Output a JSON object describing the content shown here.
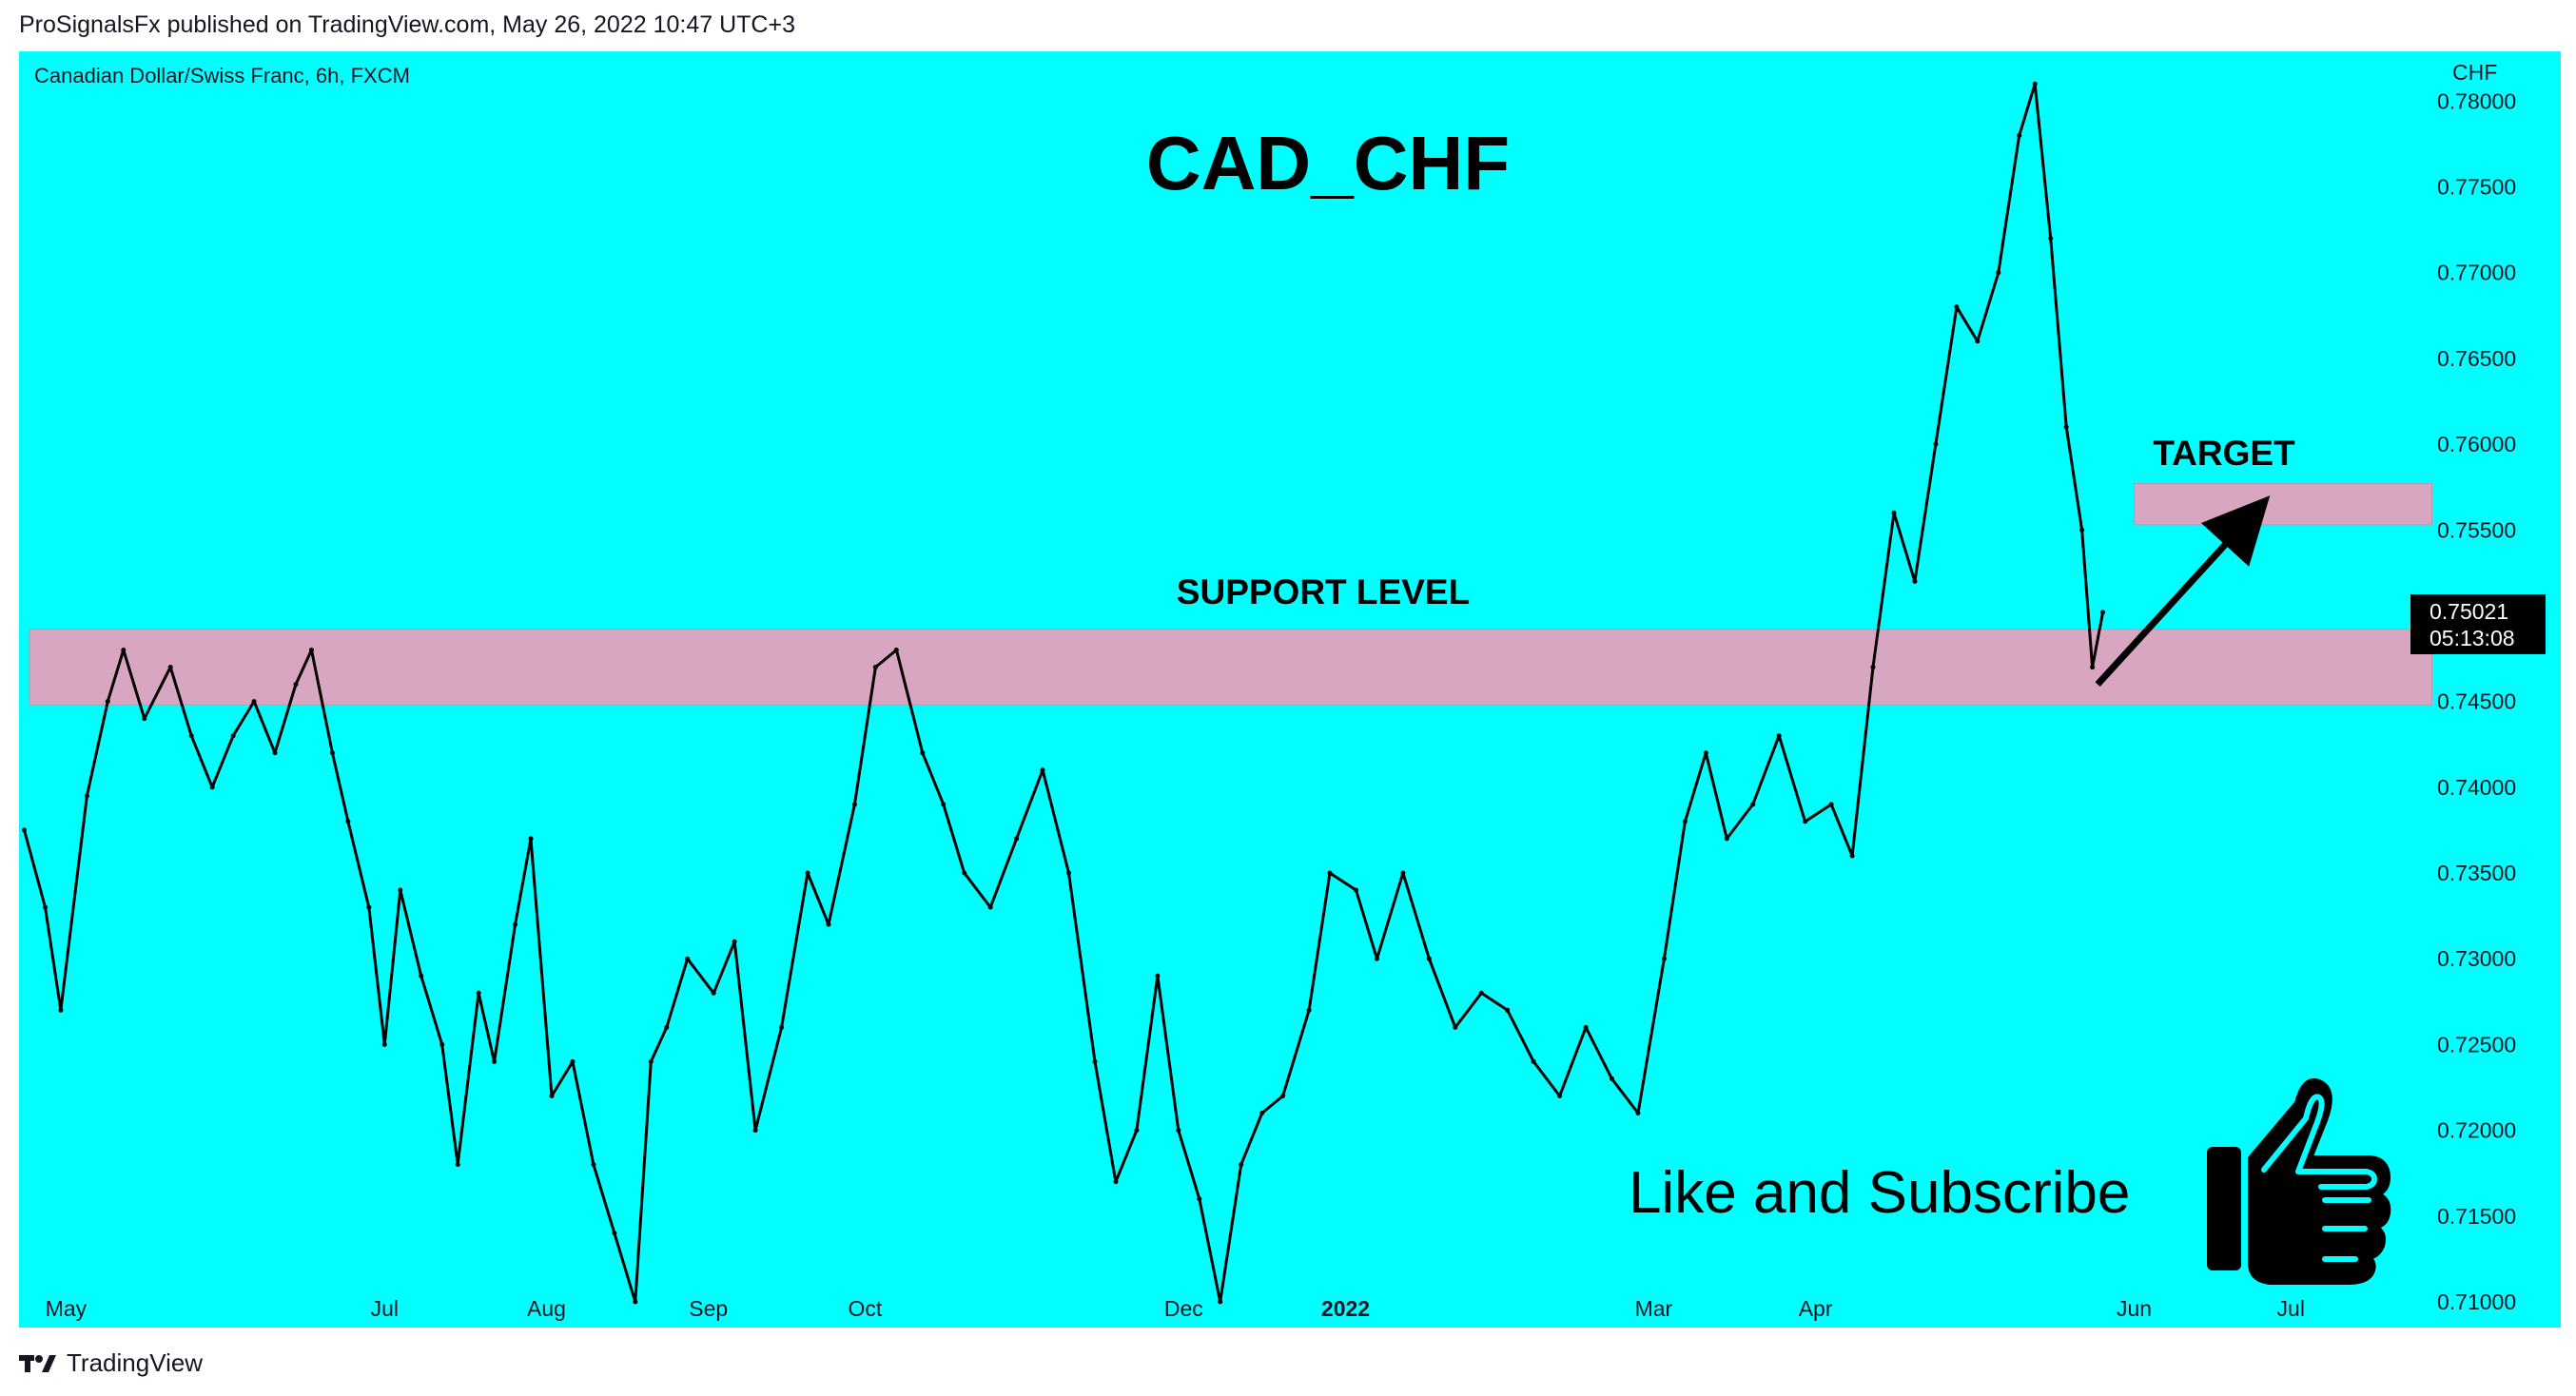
{
  "header": {
    "published": "ProSignalsFx published on TradingView.com, May 26, 2022 10:47 UTC+3"
  },
  "footer": {
    "brand": "TradingView"
  },
  "chart": {
    "symbol_label": "Canadian Dollar/Swiss Franc, 6h, FXCM",
    "title": "CAD_CHF",
    "currency": "CHF",
    "support_label": "SUPPORT LEVEL",
    "target_label": "TARGET",
    "promo_text": "Like and Subscribe",
    "last_price": "0.75021",
    "countdown": "05:13:08",
    "promo_icon": "thumbs-up-icon",
    "colors": {
      "background": "#00FFFF",
      "candles": "#000000",
      "zone_fill": "#D8A6C1",
      "price_tag": "#000000"
    }
  },
  "chart_data": {
    "type": "line",
    "title": "CAD_CHF",
    "xlabel": "",
    "ylabel": "CHF",
    "timeframe": "6h",
    "x_range": [
      "2021-04-22",
      "2022-07-25"
    ],
    "ylim": [
      0.7085,
      0.7829
    ],
    "y_ticks": [
      "0.78000",
      "0.77500",
      "0.77000",
      "0.76500",
      "0.76000",
      "0.75500",
      "0.75000",
      "0.74500",
      "0.74000",
      "0.73500",
      "0.73000",
      "0.72500",
      "0.72000",
      "0.71500",
      "0.71000"
    ],
    "x_ticks": [
      {
        "label": "May",
        "date": "2021-05-01"
      },
      {
        "label": "Jul",
        "date": "2021-07-01"
      },
      {
        "label": "Aug",
        "date": "2021-08-01"
      },
      {
        "label": "Sep",
        "date": "2021-09-01"
      },
      {
        "label": "Oct",
        "date": "2021-10-01"
      },
      {
        "label": "Dec",
        "date": "2021-12-01"
      },
      {
        "label": "2022",
        "date": "2022-01-01",
        "bold": true
      },
      {
        "label": "Mar",
        "date": "2022-03-01"
      },
      {
        "label": "Apr",
        "date": "2022-04-01"
      },
      {
        "label": "Jun",
        "date": "2022-06-01"
      },
      {
        "label": "Jul",
        "date": "2022-07-01"
      }
    ],
    "series": [
      {
        "x": [
          "2021-04-23",
          "2021-04-27",
          "2021-04-30",
          "2021-05-05",
          "2021-05-09",
          "2021-05-12",
          "2021-05-16",
          "2021-05-21",
          "2021-05-25",
          "2021-05-29",
          "2021-06-02",
          "2021-06-06",
          "2021-06-10",
          "2021-06-14",
          "2021-06-17",
          "2021-06-21",
          "2021-06-24",
          "2021-06-28",
          "2021-07-01",
          "2021-07-04",
          "2021-07-08",
          "2021-07-12",
          "2021-07-15",
          "2021-07-19",
          "2021-07-22",
          "2021-07-26",
          "2021-07-29",
          "2021-08-02",
          "2021-08-06",
          "2021-08-10",
          "2021-08-14",
          "2021-08-18",
          "2021-08-21",
          "2021-08-24",
          "2021-08-28",
          "2021-09-02",
          "2021-09-06",
          "2021-09-10",
          "2021-09-15",
          "2021-09-20",
          "2021-09-24",
          "2021-09-29",
          "2021-10-03",
          "2021-10-07",
          "2021-10-12",
          "2021-10-16",
          "2021-10-20",
          "2021-10-25",
          "2021-10-30",
          "2021-11-04",
          "2021-11-09",
          "2021-11-14",
          "2021-11-18",
          "2021-11-22",
          "2021-11-26",
          "2021-11-30",
          "2021-12-04",
          "2021-12-08",
          "2021-12-12",
          "2021-12-16",
          "2021-12-20",
          "2021-12-25",
          "2021-12-29",
          "2022-01-03",
          "2022-01-07",
          "2022-01-12",
          "2022-01-17",
          "2022-01-22",
          "2022-01-27",
          "2022-02-01",
          "2022-02-06",
          "2022-02-11",
          "2022-02-16",
          "2022-02-21",
          "2022-02-26",
          "2022-03-03",
          "2022-03-07",
          "2022-03-11",
          "2022-03-15",
          "2022-03-20",
          "2022-03-25",
          "2022-03-30",
          "2022-04-04",
          "2022-04-08",
          "2022-04-12",
          "2022-04-16",
          "2022-04-20",
          "2022-04-24",
          "2022-04-28",
          "2022-05-02",
          "2022-05-06",
          "2022-05-10",
          "2022-05-13",
          "2022-05-16",
          "2022-05-19",
          "2022-05-22",
          "2022-05-24",
          "2022-05-26"
        ],
        "values": [
          0.7375,
          0.733,
          0.727,
          0.7395,
          0.745,
          0.748,
          0.744,
          0.747,
          0.743,
          0.74,
          0.743,
          0.745,
          0.742,
          0.746,
          0.748,
          0.742,
          0.738,
          0.733,
          0.725,
          0.734,
          0.729,
          0.725,
          0.718,
          0.728,
          0.724,
          0.732,
          0.737,
          0.722,
          0.724,
          0.718,
          0.714,
          0.71,
          0.724,
          0.726,
          0.73,
          0.728,
          0.731,
          0.72,
          0.726,
          0.735,
          0.732,
          0.739,
          0.747,
          0.748,
          0.742,
          0.739,
          0.735,
          0.733,
          0.737,
          0.741,
          0.735,
          0.724,
          0.717,
          0.72,
          0.729,
          0.72,
          0.716,
          0.71,
          0.718,
          0.721,
          0.722,
          0.727,
          0.735,
          0.734,
          0.73,
          0.735,
          0.73,
          0.726,
          0.728,
          0.727,
          0.724,
          0.722,
          0.726,
          0.723,
          0.721,
          0.73,
          0.738,
          0.742,
          0.737,
          0.739,
          0.743,
          0.738,
          0.739,
          0.736,
          0.747,
          0.756,
          0.752,
          0.76,
          0.768,
          0.766,
          0.77,
          0.778,
          0.781,
          0.772,
          0.761,
          0.755,
          0.747,
          0.7502
        ]
      }
    ],
    "zones": [
      {
        "label": "SUPPORT LEVEL",
        "from": "2021-04-24",
        "to": "2022-07-28",
        "y_low": 0.7448,
        "y_high": 0.7492
      },
      {
        "label": "TARGET",
        "from": "2022-06-01",
        "to": "2022-07-28",
        "y_low": 0.7553,
        "y_high": 0.7577
      }
    ],
    "arrow": {
      "from": {
        "x": "2022-05-25",
        "y": 0.746
      },
      "to": {
        "x": "2022-06-27",
        "y": 0.757
      }
    },
    "grid": false,
    "legend": "none"
  }
}
